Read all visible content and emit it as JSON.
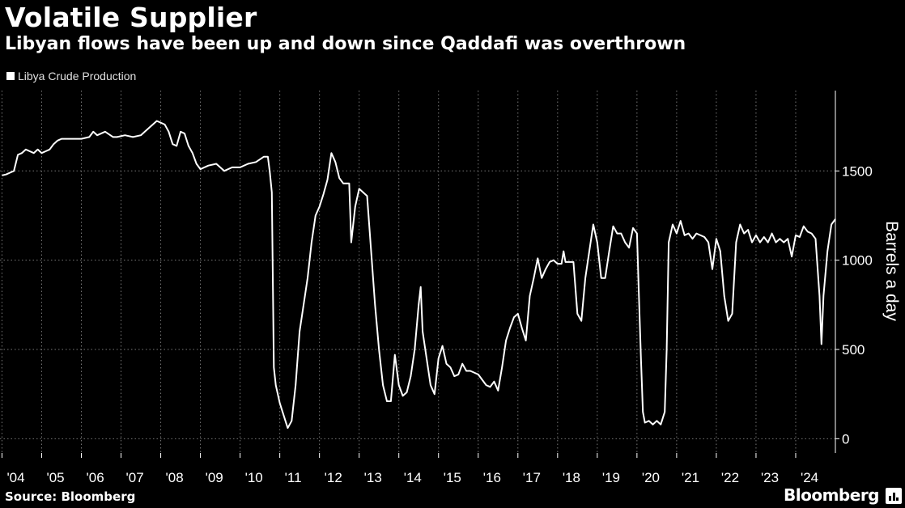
{
  "header": {
    "title": "Volatile Supplier",
    "subtitle": "Libyan flows have been up and down since Qaddafi was overthrown"
  },
  "legend": {
    "label": "Libya Crude Production"
  },
  "footer": {
    "source": "Source: Bloomberg",
    "brand": "Bloomberg"
  },
  "colors": {
    "background": "#000000",
    "line": "#ffffff",
    "grid": "#777777",
    "text": "#ffffff"
  },
  "chart_data": {
    "type": "line",
    "ylabel": "Barrels a day",
    "ylim": [
      -80,
      1950
    ],
    "yticks": [
      0,
      500,
      1000,
      1500
    ],
    "xlim": [
      2003.95,
      2025.0
    ],
    "xticks": [
      {
        "year": 2004,
        "label": "'04"
      },
      {
        "year": 2005,
        "label": "'05"
      },
      {
        "year": 2006,
        "label": "'06"
      },
      {
        "year": 2007,
        "label": "'07"
      },
      {
        "year": 2008,
        "label": "'08"
      },
      {
        "year": 2009,
        "label": "'09"
      },
      {
        "year": 2010,
        "label": "'10"
      },
      {
        "year": 2011,
        "label": "'11"
      },
      {
        "year": 2012,
        "label": "'12"
      },
      {
        "year": 2013,
        "label": "'13"
      },
      {
        "year": 2014,
        "label": "'14"
      },
      {
        "year": 2015,
        "label": "'15"
      },
      {
        "year": 2016,
        "label": "'16"
      },
      {
        "year": 2017,
        "label": "'17"
      },
      {
        "year": 2018,
        "label": "'18"
      },
      {
        "year": 2019,
        "label": "'19"
      },
      {
        "year": 2020,
        "label": "'20"
      },
      {
        "year": 2021,
        "label": "'21"
      },
      {
        "year": 2022,
        "label": "'22"
      },
      {
        "year": 2023,
        "label": "'23"
      },
      {
        "year": 2024,
        "label": "'24"
      }
    ],
    "grid": true,
    "legend_position": "top-left",
    "series": [
      {
        "name": "Libya Crude Production",
        "points": [
          [
            2004.0,
            1475
          ],
          [
            2004.1,
            1480
          ],
          [
            2004.2,
            1490
          ],
          [
            2004.3,
            1500
          ],
          [
            2004.4,
            1590
          ],
          [
            2004.5,
            1600
          ],
          [
            2004.6,
            1620
          ],
          [
            2004.7,
            1610
          ],
          [
            2004.8,
            1600
          ],
          [
            2004.9,
            1620
          ],
          [
            2005.0,
            1600
          ],
          [
            2005.1,
            1610
          ],
          [
            2005.2,
            1620
          ],
          [
            2005.3,
            1650
          ],
          [
            2005.4,
            1670
          ],
          [
            2005.5,
            1680
          ],
          [
            2005.7,
            1680
          ],
          [
            2006.0,
            1680
          ],
          [
            2006.2,
            1690
          ],
          [
            2006.3,
            1720
          ],
          [
            2006.4,
            1700
          ],
          [
            2006.6,
            1720
          ],
          [
            2006.8,
            1690
          ],
          [
            2006.9,
            1690
          ],
          [
            2007.1,
            1700
          ],
          [
            2007.3,
            1690
          ],
          [
            2007.5,
            1700
          ],
          [
            2007.6,
            1720
          ],
          [
            2007.8,
            1760
          ],
          [
            2007.9,
            1780
          ],
          [
            2008.1,
            1760
          ],
          [
            2008.2,
            1720
          ],
          [
            2008.3,
            1650
          ],
          [
            2008.4,
            1640
          ],
          [
            2008.5,
            1720
          ],
          [
            2008.6,
            1710
          ],
          [
            2008.7,
            1640
          ],
          [
            2008.8,
            1600
          ],
          [
            2008.9,
            1540
          ],
          [
            2009.0,
            1510
          ],
          [
            2009.2,
            1530
          ],
          [
            2009.4,
            1540
          ],
          [
            2009.6,
            1500
          ],
          [
            2009.8,
            1520
          ],
          [
            2010.0,
            1520
          ],
          [
            2010.2,
            1540
          ],
          [
            2010.4,
            1550
          ],
          [
            2010.6,
            1580
          ],
          [
            2010.7,
            1580
          ],
          [
            2010.75,
            1490
          ],
          [
            2010.8,
            1380
          ],
          [
            2010.85,
            400
          ],
          [
            2010.9,
            300
          ],
          [
            2011.0,
            200
          ],
          [
            2011.1,
            130
          ],
          [
            2011.2,
            60
          ],
          [
            2011.3,
            100
          ],
          [
            2011.4,
            300
          ],
          [
            2011.5,
            600
          ],
          [
            2011.7,
            900
          ],
          [
            2011.8,
            1100
          ],
          [
            2011.9,
            1250
          ],
          [
            2012.0,
            1300
          ],
          [
            2012.1,
            1370
          ],
          [
            2012.2,
            1450
          ],
          [
            2012.3,
            1600
          ],
          [
            2012.4,
            1550
          ],
          [
            2012.5,
            1460
          ],
          [
            2012.6,
            1430
          ],
          [
            2012.75,
            1430
          ],
          [
            2012.8,
            1100
          ],
          [
            2012.9,
            1300
          ],
          [
            2013.0,
            1400
          ],
          [
            2013.2,
            1360
          ],
          [
            2013.4,
            750
          ],
          [
            2013.5,
            500
          ],
          [
            2013.6,
            300
          ],
          [
            2013.7,
            210
          ],
          [
            2013.8,
            210
          ],
          [
            2013.9,
            470
          ],
          [
            2014.0,
            300
          ],
          [
            2014.1,
            240
          ],
          [
            2014.2,
            260
          ],
          [
            2014.3,
            350
          ],
          [
            2014.4,
            500
          ],
          [
            2014.5,
            750
          ],
          [
            2014.55,
            850
          ],
          [
            2014.6,
            600
          ],
          [
            2014.7,
            450
          ],
          [
            2014.8,
            300
          ],
          [
            2014.9,
            250
          ],
          [
            2015.0,
            450
          ],
          [
            2015.1,
            520
          ],
          [
            2015.2,
            420
          ],
          [
            2015.3,
            400
          ],
          [
            2015.4,
            350
          ],
          [
            2015.5,
            360
          ],
          [
            2015.6,
            420
          ],
          [
            2015.7,
            380
          ],
          [
            2015.8,
            380
          ],
          [
            2016.0,
            360
          ],
          [
            2016.1,
            330
          ],
          [
            2016.2,
            300
          ],
          [
            2016.3,
            290
          ],
          [
            2016.4,
            320
          ],
          [
            2016.5,
            270
          ],
          [
            2016.6,
            400
          ],
          [
            2016.7,
            550
          ],
          [
            2016.8,
            620
          ],
          [
            2016.9,
            680
          ],
          [
            2017.0,
            700
          ],
          [
            2017.1,
            620
          ],
          [
            2017.2,
            550
          ],
          [
            2017.3,
            800
          ],
          [
            2017.4,
            900
          ],
          [
            2017.5,
            1010
          ],
          [
            2017.6,
            900
          ],
          [
            2017.7,
            950
          ],
          [
            2017.8,
            990
          ],
          [
            2017.9,
            1000
          ],
          [
            2018.0,
            980
          ],
          [
            2018.1,
            980
          ],
          [
            2018.15,
            1050
          ],
          [
            2018.2,
            990
          ],
          [
            2018.4,
            990
          ],
          [
            2018.5,
            700
          ],
          [
            2018.6,
            660
          ],
          [
            2018.7,
            900
          ],
          [
            2018.8,
            1050
          ],
          [
            2018.9,
            1200
          ],
          [
            2019.0,
            1100
          ],
          [
            2019.1,
            900
          ],
          [
            2019.2,
            900
          ],
          [
            2019.3,
            1050
          ],
          [
            2019.4,
            1190
          ],
          [
            2019.5,
            1150
          ],
          [
            2019.6,
            1150
          ],
          [
            2019.7,
            1100
          ],
          [
            2019.8,
            1070
          ],
          [
            2019.9,
            1180
          ],
          [
            2020.0,
            1150
          ],
          [
            2020.05,
            800
          ],
          [
            2020.1,
            450
          ],
          [
            2020.15,
            150
          ],
          [
            2020.2,
            90
          ],
          [
            2020.3,
            100
          ],
          [
            2020.4,
            80
          ],
          [
            2020.5,
            100
          ],
          [
            2020.6,
            80
          ],
          [
            2020.7,
            150
          ],
          [
            2020.75,
            500
          ],
          [
            2020.8,
            1100
          ],
          [
            2020.9,
            1200
          ],
          [
            2021.0,
            1150
          ],
          [
            2021.1,
            1220
          ],
          [
            2021.2,
            1140
          ],
          [
            2021.3,
            1150
          ],
          [
            2021.4,
            1120
          ],
          [
            2021.5,
            1150
          ],
          [
            2021.7,
            1130
          ],
          [
            2021.8,
            1100
          ],
          [
            2021.9,
            950
          ],
          [
            2022.0,
            1120
          ],
          [
            2022.1,
            1050
          ],
          [
            2022.2,
            800
          ],
          [
            2022.3,
            660
          ],
          [
            2022.4,
            700
          ],
          [
            2022.5,
            1100
          ],
          [
            2022.6,
            1200
          ],
          [
            2022.7,
            1150
          ],
          [
            2022.8,
            1170
          ],
          [
            2022.9,
            1100
          ],
          [
            2023.0,
            1140
          ],
          [
            2023.1,
            1100
          ],
          [
            2023.2,
            1130
          ],
          [
            2023.3,
            1100
          ],
          [
            2023.4,
            1150
          ],
          [
            2023.5,
            1100
          ],
          [
            2023.6,
            1120
          ],
          [
            2023.7,
            1100
          ],
          [
            2023.8,
            1120
          ],
          [
            2023.9,
            1020
          ],
          [
            2024.0,
            1140
          ],
          [
            2024.1,
            1130
          ],
          [
            2024.2,
            1190
          ],
          [
            2024.3,
            1160
          ],
          [
            2024.4,
            1150
          ],
          [
            2024.5,
            1120
          ],
          [
            2024.6,
            800
          ],
          [
            2024.65,
            530
          ],
          [
            2024.7,
            800
          ],
          [
            2024.8,
            1050
          ],
          [
            2024.9,
            1200
          ],
          [
            2025.0,
            1230
          ]
        ]
      }
    ]
  }
}
